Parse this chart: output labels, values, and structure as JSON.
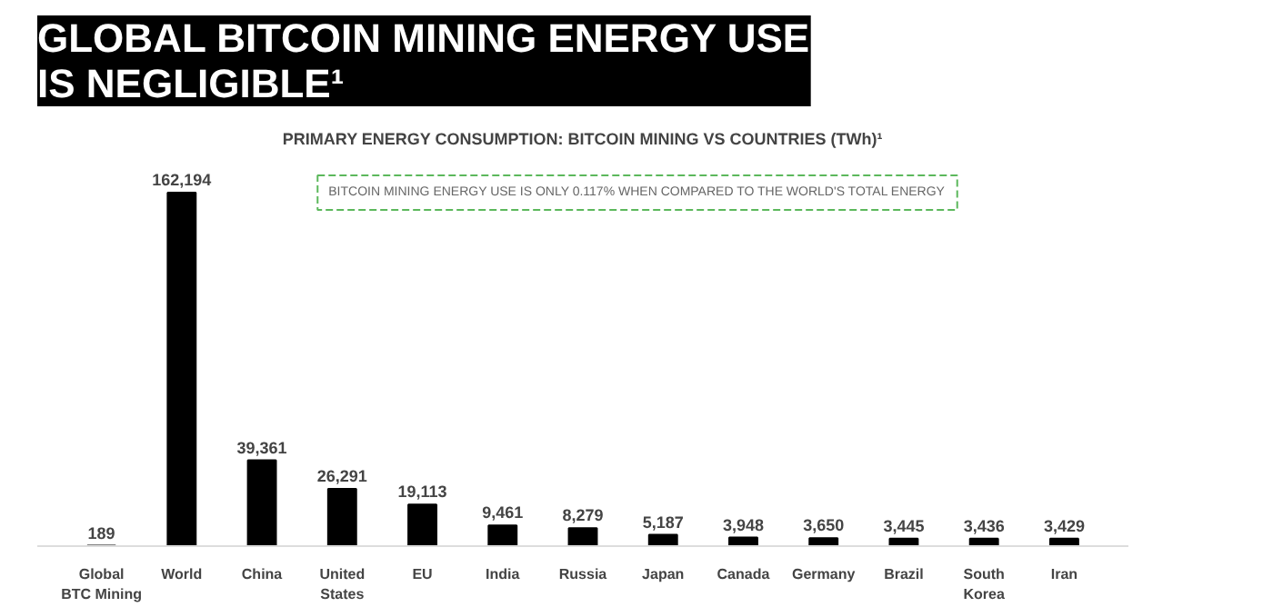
{
  "chart_data": {
    "type": "bar",
    "title": "GLOBAL BITCOIN MINING ENERGY USE\nIS NEGLIGIBLE¹",
    "subtitle": "PRIMARY ENERGY CONSUMPTION: BITCOIN MINING VS COUNTRIES (TWh)¹",
    "categories": [
      "Global BTC Mining",
      "World",
      "China",
      "United States",
      "EU",
      "India",
      "Russia",
      "Japan",
      "Canada",
      "Germany",
      "Brazil",
      "South Korea",
      "Iran"
    ],
    "values": [
      189,
      162194,
      39361,
      26291,
      19113,
      9461,
      8279,
      5187,
      3948,
      3650,
      3445,
      3436,
      3429
    ],
    "value_labels": [
      "189",
      "162,194",
      "39,361",
      "26,291",
      "19,113",
      "9,461",
      "8,279",
      "5,187",
      "3,948",
      "3,650",
      "3,445",
      "3,436",
      "3,429"
    ],
    "color": "#000000",
    "annotations": [
      "BITCOIN MINING ENERGY USE IS ONLY 0.117% WHEN COMPARED TO THE WORLD'S TOTAL ENERGY"
    ],
    "grid": false
  }
}
